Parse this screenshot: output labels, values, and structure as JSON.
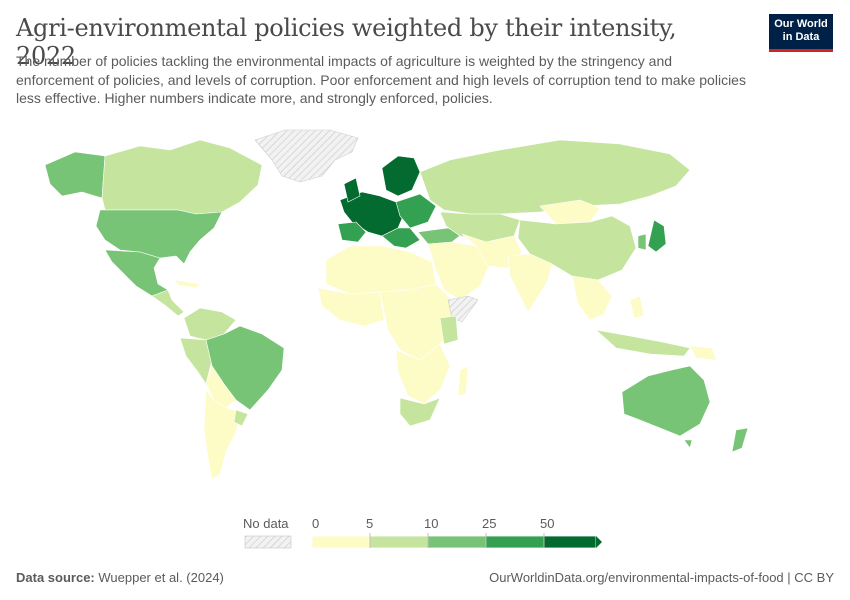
{
  "title": "Agri-environmental policies weighted by their intensity, 2022",
  "subtitle": "The number of policies tackling the environmental impacts of agriculture is weighted by the stringency and enforcement of policies, and levels of corruption. Poor enforcement and high levels of corruption tend to make policies less effective. Higher numbers indicate more, and strongly enforced, policies.",
  "logo": {
    "line1": "Our World",
    "line2": "in Data"
  },
  "legend": {
    "no_data_label": "No data",
    "ticks": [
      "0",
      "5",
      "10",
      "25",
      "50"
    ],
    "colors": [
      "#fdfbc6",
      "#c5e59f",
      "#77c476",
      "#34a052",
      "#036b2f"
    ],
    "no_data_color": "#eeeeee"
  },
  "footer": {
    "source_label": "Data source:",
    "source_value": "Wuepper et al. (2024)",
    "link": "OurWorldinData.org/environmental-impacts-of-food | CC BY"
  }
}
